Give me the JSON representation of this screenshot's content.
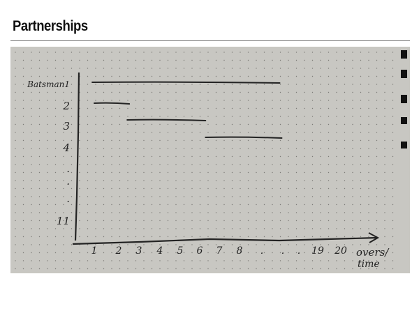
{
  "slide": {
    "title": "Partnerships"
  },
  "colors": {
    "paper": "#c8c7c2",
    "ink": "#232323",
    "dots": "#7d7c78"
  },
  "chart_data": {
    "type": "gantt-line",
    "title": "",
    "xlabel": "overs/ time",
    "ylabel": "",
    "x_tick_labels": [
      "1",
      "2",
      "3",
      "4",
      "5",
      "6",
      "7",
      "8",
      ".",
      ".",
      ".",
      "19",
      "20"
    ],
    "y_tick_labels": [
      "Batsman1",
      "2",
      "3",
      "4",
      ".",
      ".",
      ".",
      "11"
    ],
    "grid": "dot grid paper",
    "series": [
      {
        "batsman": "Batsman1",
        "start_over": 0.9,
        "end_over": 10.0
      },
      {
        "batsman": "2",
        "start_over": 1.0,
        "end_over": 2.7
      },
      {
        "batsman": "3",
        "start_over": 2.6,
        "end_over": 6.4
      },
      {
        "batsman": "4",
        "start_over": 6.4,
        "end_over": 10.1
      }
    ]
  }
}
